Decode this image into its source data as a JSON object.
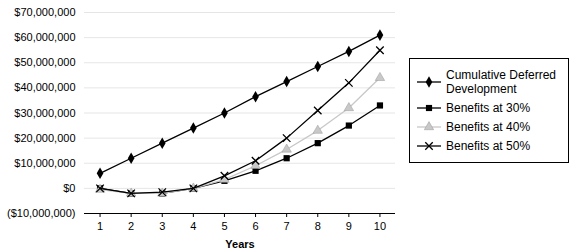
{
  "chart_data": {
    "type": "line",
    "x": [
      1,
      2,
      3,
      4,
      5,
      6,
      7,
      8,
      9,
      10
    ],
    "xlabel": "Years",
    "xlim": [
      0.5,
      10.5
    ],
    "xticks": [
      1,
      2,
      3,
      4,
      5,
      6,
      7,
      8,
      9,
      10
    ],
    "ylim": [
      -10000000,
      70000000
    ],
    "yticks": [
      {
        "value": -10000000,
        "label": "($10,000,000)"
      },
      {
        "value": 0,
        "label": "$0"
      },
      {
        "value": 10000000,
        "label": "$10,000,000"
      },
      {
        "value": 20000000,
        "label": "$20,000,000"
      },
      {
        "value": 30000000,
        "label": "$30,000,000"
      },
      {
        "value": 40000000,
        "label": "$40,000,000"
      },
      {
        "value": 50000000,
        "label": "$50,000,000"
      },
      {
        "value": 60000000,
        "label": "$60,000,000"
      },
      {
        "value": 70000000,
        "label": "$70,000,000"
      }
    ],
    "grid": true,
    "legend": "right",
    "series": [
      {
        "name": "Cumulative Deferred Development",
        "color": "#000000",
        "marker": "diamond",
        "values": [
          6000000,
          12000000,
          18000000,
          24000000,
          30000000,
          36500000,
          42500000,
          48500000,
          54500000,
          61000000
        ]
      },
      {
        "name": "Benefits at 30%",
        "color": "#000000",
        "marker": "square",
        "values": [
          0,
          -2000000,
          -2000000,
          0,
          3000000,
          7000000,
          12000000,
          18000000,
          25000000,
          33000000
        ]
      },
      {
        "name": "Benefits at 40%",
        "color": "#c8c8c8",
        "marker": "triangle",
        "values": [
          -500000,
          -2000000,
          -2000000,
          0,
          3500000,
          9000000,
          15500000,
          23000000,
          32000000,
          44000000
        ]
      },
      {
        "name": "Benefits at 50%",
        "color": "#000000",
        "marker": "times",
        "values": [
          0,
          -2000000,
          -1500000,
          0,
          5000000,
          11000000,
          20000000,
          31000000,
          42000000,
          55000000
        ]
      }
    ]
  }
}
